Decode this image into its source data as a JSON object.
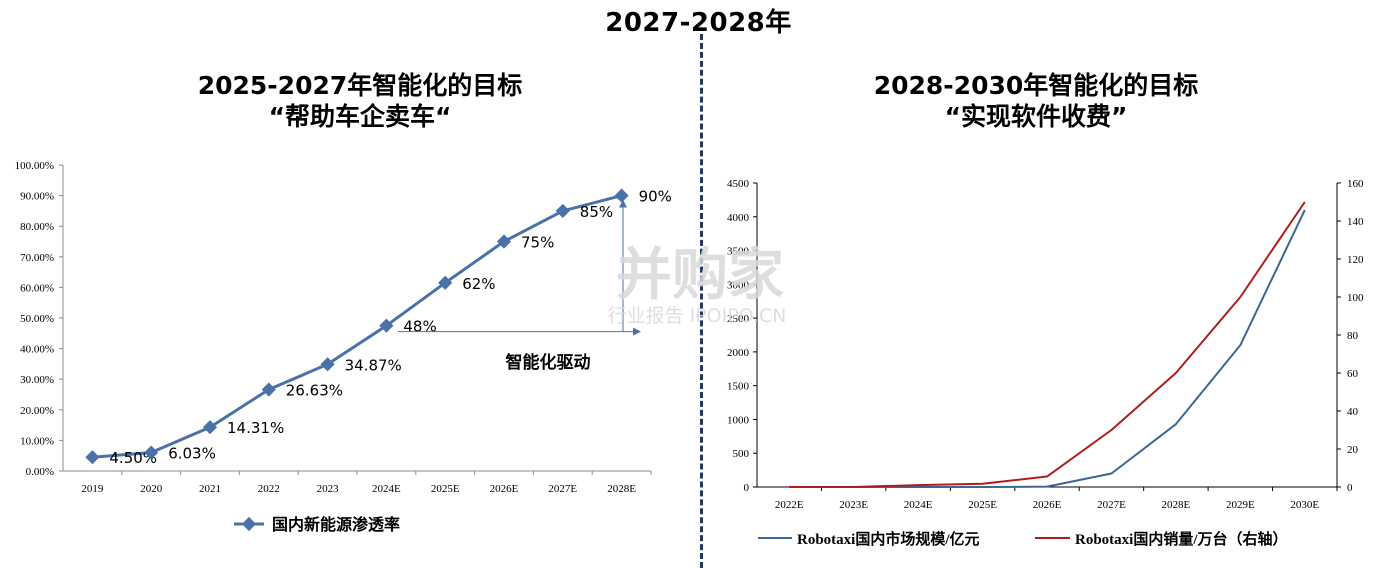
{
  "header": {
    "title": "2027-2028年"
  },
  "left_panel": {
    "title_line1": "2025-2027年智能化的目标",
    "title_line2": "“帮助车企卖车“",
    "annotation": "智能化驱动"
  },
  "right_panel": {
    "title_line1": "2028-2030年智能化的目标",
    "title_line2": "“实现软件收费”"
  },
  "watermark": {
    "main": "并购家",
    "sub": "行业报告 IPOIPO.CN"
  },
  "colors": {
    "left_series": "#4a72a8",
    "right_series_1": "#3d6691",
    "right_series_2": "#b01c1c",
    "divider": "#1f3864"
  },
  "chart_data": [
    {
      "type": "line",
      "categories": [
        "2019",
        "2020",
        "2021",
        "2022",
        "2023",
        "2024E",
        "2025E",
        "2026E",
        "2027E",
        "2028E"
      ],
      "series": [
        {
          "name": "国内新能源渗透率",
          "values": [
            4.5,
            6.03,
            14.31,
            26.63,
            34.87,
            47.5,
            61.5,
            75,
            85,
            90
          ],
          "data_labels": [
            "4.50%",
            "6.03%",
            "14.31%",
            "26.63%",
            "34.87%",
            "48%",
            "62%",
            "75%",
            "85%",
            "90%"
          ]
        }
      ],
      "ylim": [
        0,
        100
      ],
      "yticks": [
        "0.00%",
        "10.00%",
        "20.00%",
        "30.00%",
        "40.00%",
        "50.00%",
        "60.00%",
        "70.00%",
        "80.00%",
        "90.00%",
        "100.00%"
      ],
      "legend_position": "bottom",
      "grid": false
    },
    {
      "type": "line",
      "categories": [
        "2022E",
        "2023E",
        "2024E",
        "2025E",
        "2026E",
        "2027E",
        "2028E",
        "2029E",
        "2030E"
      ],
      "series": [
        {
          "name": "Robotaxi国内市场规模/亿元",
          "axis": "left",
          "values": [
            0,
            0,
            0,
            0,
            5,
            200,
            930,
            2100,
            4100
          ]
        },
        {
          "name": "Robotaxi国内销量/万台（右轴）",
          "axis": "right",
          "values": [
            0,
            0,
            1,
            1.7,
            5.5,
            30,
            60,
            100,
            150
          ]
        }
      ],
      "ylim_left": [
        0,
        4500
      ],
      "yticks_left": [
        "0",
        "500",
        "1000",
        "1500",
        "2000",
        "2500",
        "3000",
        "3500",
        "4000",
        "4500"
      ],
      "ylim_right": [
        0,
        160
      ],
      "yticks_right": [
        "0",
        "20",
        "40",
        "60",
        "80",
        "100",
        "120",
        "140",
        "160"
      ],
      "legend_position": "bottom",
      "grid": false
    }
  ]
}
